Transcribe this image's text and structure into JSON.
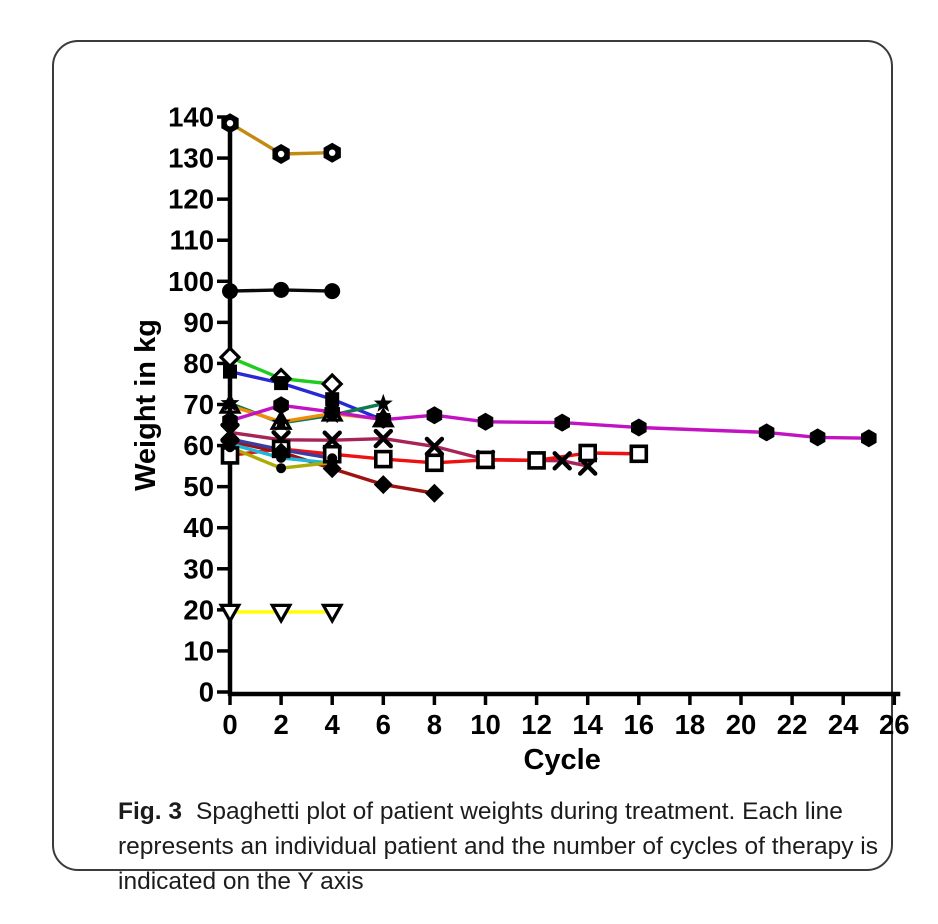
{
  "figure": {
    "caption_label": "Fig. 3",
    "caption_text": "Spaghetti plot of patient weights during treatment. Each line represents an individual patient and the number of cycles of therapy is indicated on the Y axis"
  },
  "chart_data": {
    "type": "line",
    "title": "",
    "xlabel": "Cycle",
    "ylabel": "Weight in kg",
    "xlim": [
      0,
      26
    ],
    "xtick_step": 2,
    "ylim": [
      0,
      140
    ],
    "ytick_step": 10,
    "grid": false,
    "legend": "none",
    "axis_color": "#000000",
    "series": [
      {
        "name": "patient-hex-open-gold",
        "color": "#C28A10",
        "marker": "hex-open",
        "points": [
          [
            0,
            138.5
          ],
          [
            2,
            131.0
          ],
          [
            4,
            131.3
          ]
        ]
      },
      {
        "name": "patient-circle-black",
        "color": "#0A0A0A",
        "marker": "circle",
        "points": [
          [
            0,
            97.6
          ],
          [
            2,
            97.9
          ],
          [
            4,
            97.6
          ]
        ]
      },
      {
        "name": "patient-diamond-open-green",
        "color": "#1ECC1E",
        "marker": "diamond-open",
        "points": [
          [
            0,
            81.5
          ],
          [
            2,
            76.3
          ],
          [
            4,
            75.0
          ]
        ]
      },
      {
        "name": "patient-square-blue",
        "color": "#2828D4",
        "marker": "square",
        "points": [
          [
            0,
            78.0
          ],
          [
            2,
            75.2
          ],
          [
            4,
            71.3
          ],
          [
            6,
            66.2
          ]
        ]
      },
      {
        "name": "patient-star-teal",
        "color": "#0D7A50",
        "marker": "star",
        "points": [
          [
            0,
            70.3
          ],
          [
            2,
            65.5
          ],
          [
            4,
            67.4
          ],
          [
            6,
            70.2
          ]
        ]
      },
      {
        "name": "patient-triangle-orange",
        "color": "#F28C0A",
        "marker": "triangle-open",
        "points": [
          [
            0,
            69.7
          ],
          [
            2,
            65.8
          ],
          [
            4,
            67.8
          ],
          [
            6,
            66.4
          ]
        ]
      },
      {
        "name": "patient-x-crimson",
        "color": "#A62458",
        "marker": "x",
        "points": [
          [
            0,
            63.2
          ],
          [
            2,
            61.4
          ],
          [
            4,
            61.3
          ],
          [
            6,
            61.7
          ],
          [
            8,
            59.8
          ],
          [
            10,
            56.6
          ],
          [
            13,
            56.3
          ],
          [
            14,
            55.0
          ]
        ]
      },
      {
        "name": "patient-square-open-red",
        "color": "#F01010",
        "marker": "square-open",
        "points": [
          [
            0,
            57.6
          ],
          [
            2,
            59.2
          ],
          [
            4,
            57.9
          ],
          [
            6,
            56.7
          ],
          [
            8,
            55.8
          ],
          [
            10,
            56.5
          ],
          [
            12,
            56.4
          ],
          [
            14,
            58.2
          ],
          [
            16,
            58.0
          ]
        ]
      },
      {
        "name": "patient-diamond-darkred",
        "color": "#9E1212",
        "marker": "diamond",
        "points": [
          [
            0,
            61.0
          ],
          [
            2,
            58.4
          ],
          [
            4,
            54.4
          ],
          [
            6,
            50.5
          ],
          [
            8,
            48.4
          ]
        ]
      },
      {
        "name": "patient-line-cyan",
        "color": "#1CB8DC",
        "marker": "circle-small",
        "points": [
          [
            0,
            60.4
          ],
          [
            2,
            57.0
          ],
          [
            4,
            55.7
          ]
        ]
      },
      {
        "name": "patient-line-olive",
        "color": "#ABAB06",
        "marker": "circle-small",
        "points": [
          [
            0,
            59.6
          ],
          [
            2,
            54.5
          ],
          [
            4,
            55.9
          ]
        ]
      },
      {
        "name": "patient-line-navy",
        "color": "#3C3CA0",
        "marker": "circle-small",
        "points": [
          [
            0,
            61.6
          ],
          [
            2,
            59.0
          ],
          [
            4,
            56.9
          ]
        ]
      },
      {
        "name": "patient-tridown-yellow",
        "color": "#FFFF00",
        "marker": "triangle-down-open",
        "points": [
          [
            0,
            19.5
          ],
          [
            2,
            19.5
          ],
          [
            4,
            19.5
          ]
        ]
      },
      {
        "name": "patient-hexagon-magenta",
        "color": "#C213C2",
        "marker": "hexagon",
        "points": [
          [
            0,
            66.0
          ],
          [
            2,
            69.8
          ],
          [
            4,
            68.2
          ],
          [
            6,
            66.3
          ],
          [
            8,
            67.4
          ],
          [
            10,
            65.8
          ],
          [
            13,
            65.6
          ],
          [
            16,
            64.4
          ],
          [
            21,
            63.2
          ],
          [
            23,
            62.0
          ],
          [
            25,
            61.8
          ]
        ]
      }
    ]
  }
}
